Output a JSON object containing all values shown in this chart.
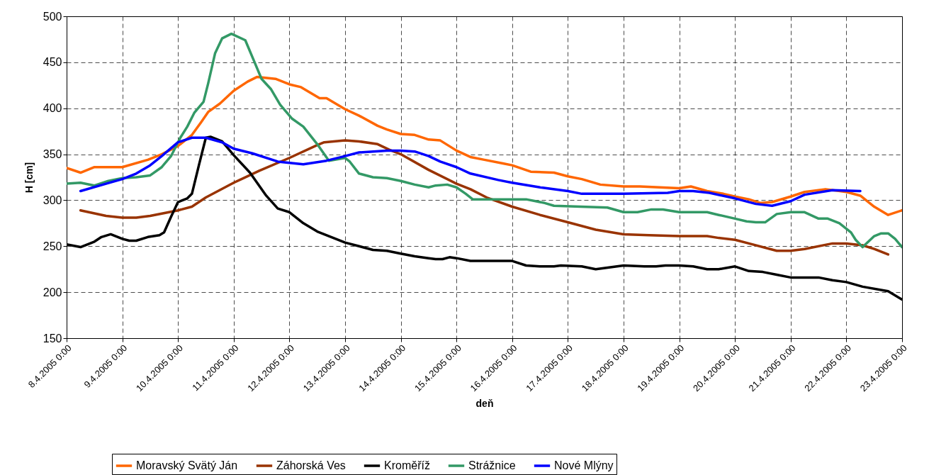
{
  "chart_data": {
    "type": "line",
    "xlabel": "deň",
    "ylabel": "H [cm]",
    "grid": true,
    "legend": "bottom",
    "line_style": "solid",
    "marker": "none",
    "xlim": [
      "2005-04-08T00:00",
      "2005-04-23T00:00"
    ],
    "xticks": [
      {
        "value": "2005-04-08T00:00",
        "label": "8.4.2005 0:00"
      },
      {
        "value": "2005-04-09T00:00",
        "label": "9.4.2005 0:00"
      },
      {
        "value": "2005-04-10T00:00",
        "label": "10.4.2005 0:00"
      },
      {
        "value": "2005-04-11T00:00",
        "label": "11.4.2005 0:00"
      },
      {
        "value": "2005-04-12T00:00",
        "label": "12.4.2005 0:00"
      },
      {
        "value": "2005-04-13T00:00",
        "label": "13.4.2005 0:00"
      },
      {
        "value": "2005-04-14T00:00",
        "label": "14.4.2005 0:00"
      },
      {
        "value": "2005-04-15T00:00",
        "label": "15.4.2005 0:00"
      },
      {
        "value": "2005-04-16T00:00",
        "label": "16.4.2005 0:00"
      },
      {
        "value": "2005-04-17T00:00",
        "label": "17.4.2005 0:00"
      },
      {
        "value": "2005-04-18T00:00",
        "label": "18.4.2005 0:00"
      },
      {
        "value": "2005-04-19T00:00",
        "label": "19.4.2005 0:00"
      },
      {
        "value": "2005-04-20T00:00",
        "label": "20.4.2005 0:00"
      },
      {
        "value": "2005-04-21T00:00",
        "label": "21.4.2005 0:00"
      },
      {
        "value": "2005-04-22T00:00",
        "label": "22.4.2005 0:00"
      },
      {
        "value": "2005-04-23T00:00",
        "label": "23.4.2005 0:00"
      }
    ],
    "ylim": [
      150,
      500
    ],
    "yticks": [
      150,
      200,
      250,
      300,
      350,
      400,
      450,
      500
    ],
    "series": [
      {
        "name": "Moravský Svätý Ján",
        "color": "#ff6600",
        "x": [
          "2005-04-08T00:00",
          "2005-04-08T06:00",
          "2005-04-08T12:00",
          "2005-04-09T00:00",
          "2005-04-09T11:00",
          "2005-04-09T17:00",
          "2005-04-10T00:00",
          "2005-04-10T06:00",
          "2005-04-10T10:00",
          "2005-04-10T13:00",
          "2005-04-10T18:00",
          "2005-04-11T00:00",
          "2005-04-11T06:00",
          "2005-04-11T10:00",
          "2005-04-11T18:00",
          "2005-04-12T00:00",
          "2005-04-12T05:00",
          "2005-04-12T13:00",
          "2005-04-12T16:00",
          "2005-04-13T00:00",
          "2005-04-13T06:00",
          "2005-04-13T14:00",
          "2005-04-13T18:00",
          "2005-04-14T00:00",
          "2005-04-14T06:00",
          "2005-04-14T12:00",
          "2005-04-14T17:00",
          "2005-04-15T00:00",
          "2005-04-15T06:00",
          "2005-04-15T12:00",
          "2005-04-15T20:00",
          "2005-04-16T00:00",
          "2005-04-16T08:00",
          "2005-04-16T18:00",
          "2005-04-17T00:00",
          "2005-04-17T06:00",
          "2005-04-17T14:00",
          "2005-04-18T00:00",
          "2005-04-18T07:00",
          "2005-04-19T00:00",
          "2005-04-19T05:00",
          "2005-04-19T12:00",
          "2005-04-19T19:00",
          "2005-04-20T00:00",
          "2005-04-20T06:00",
          "2005-04-20T11:00",
          "2005-04-20T16:00",
          "2005-04-21T00:00",
          "2005-04-21T06:00",
          "2005-04-21T15:00",
          "2005-04-22T00:00",
          "2005-04-22T06:00",
          "2005-04-22T12:00",
          "2005-04-22T18:00",
          "2005-04-23T00:00"
        ],
        "values": [
          335,
          330,
          336,
          336,
          344,
          350,
          359,
          371,
          385,
          396,
          405,
          419,
          429,
          434,
          432,
          426,
          423,
          411,
          411,
          399,
          392,
          381,
          377,
          372,
          371,
          366,
          365,
          354,
          347,
          344,
          340,
          338,
          331,
          330,
          326,
          323,
          317,
          315,
          315,
          313,
          315,
          310,
          307,
          304,
          301,
          297,
          298,
          304,
          309,
          312,
          309,
          305,
          293,
          284,
          289
        ]
      },
      {
        "name": "Záhorská Ves",
        "color": "#993300",
        "x": [
          "2005-04-08T06:00",
          "2005-04-08T17:00",
          "2005-04-09T00:00",
          "2005-04-09T06:00",
          "2005-04-09T12:00",
          "2005-04-10T00:00",
          "2005-04-10T06:00",
          "2005-04-10T12:00",
          "2005-04-11T00:00",
          "2005-04-11T11:00",
          "2005-04-12T00:00",
          "2005-04-12T12:00",
          "2005-04-12T15:00",
          "2005-04-13T00:00",
          "2005-04-13T06:00",
          "2005-04-13T14:00",
          "2005-04-13T19:00",
          "2005-04-14T00:00",
          "2005-04-14T12:00",
          "2005-04-15T00:00",
          "2005-04-15T06:00",
          "2005-04-15T13:00",
          "2005-04-16T00:00",
          "2005-04-16T12:00",
          "2005-04-17T00:00",
          "2005-04-17T12:00",
          "2005-04-18T00:00",
          "2005-04-18T11:00",
          "2005-04-19T00:00",
          "2005-04-19T12:00",
          "2005-04-19T17:00",
          "2005-04-20T00:00",
          "2005-04-20T06:00",
          "2005-04-20T18:00",
          "2005-04-21T00:00",
          "2005-04-21T06:00",
          "2005-04-21T18:00",
          "2005-04-22T00:00",
          "2005-04-22T07:00",
          "2005-04-22T12:00",
          "2005-04-22T18:00"
        ],
        "values": [
          289,
          283,
          281,
          281,
          283,
          289,
          293,
          303,
          319,
          332,
          346,
          360,
          363,
          365,
          364,
          361,
          355,
          350,
          333,
          318,
          312,
          303,
          293,
          284,
          276,
          268,
          263,
          262,
          261,
          261,
          259,
          257,
          253,
          245,
          245,
          247,
          253,
          253,
          251,
          247,
          241
        ]
      },
      {
        "name": "Kroměříž",
        "color": "#000000",
        "x": [
          "2005-04-08T00:00",
          "2005-04-08T06:00",
          "2005-04-08T12:00",
          "2005-04-08T15:00",
          "2005-04-08T19:00",
          "2005-04-09T00:00",
          "2005-04-09T03:00",
          "2005-04-09T06:00",
          "2005-04-09T11:00",
          "2005-04-09T16:00",
          "2005-04-09T18:00",
          "2005-04-09T21:00",
          "2005-04-10T00:00",
          "2005-04-10T04:00",
          "2005-04-10T06:00",
          "2005-04-10T09:00",
          "2005-04-10T10:00",
          "2005-04-10T12:00",
          "2005-04-10T14:00",
          "2005-04-10T19:00",
          "2005-04-11T00:00",
          "2005-04-11T07:00",
          "2005-04-11T14:00",
          "2005-04-11T19:00",
          "2005-04-12T00:00",
          "2005-04-12T06:00",
          "2005-04-12T12:00",
          "2005-04-13T00:00",
          "2005-04-13T06:00",
          "2005-04-13T12:00",
          "2005-04-13T18:00",
          "2005-04-14T00:00",
          "2005-04-14T06:00",
          "2005-04-14T12:00",
          "2005-04-14T15:00",
          "2005-04-14T18:00",
          "2005-04-14T21:00",
          "2005-04-15T00:00",
          "2005-04-15T06:00",
          "2005-04-16T00:00",
          "2005-04-16T06:00",
          "2005-04-16T12:00",
          "2005-04-16T18:00",
          "2005-04-16T21:00",
          "2005-04-17T06:00",
          "2005-04-17T12:00",
          "2005-04-18T00:00",
          "2005-04-18T09:00",
          "2005-04-18T14:00",
          "2005-04-18T18:00",
          "2005-04-19T00:00",
          "2005-04-19T06:00",
          "2005-04-19T12:00",
          "2005-04-19T17:00",
          "2005-04-20T00:00",
          "2005-04-20T06:00",
          "2005-04-20T12:00",
          "2005-04-20T18:00",
          "2005-04-21T00:00",
          "2005-04-21T12:00",
          "2005-04-21T18:00",
          "2005-04-22T00:00",
          "2005-04-22T07:00",
          "2005-04-22T18:00",
          "2005-04-23T00:00"
        ],
        "values": [
          252,
          249,
          255,
          260,
          263,
          258,
          256,
          256,
          260,
          262,
          265,
          282,
          298,
          302,
          307,
          338,
          348,
          368,
          369,
          364,
          349,
          330,
          305,
          291,
          287,
          275,
          266,
          254,
          250,
          246,
          245,
          242,
          239,
          237,
          236,
          236,
          238,
          237,
          234,
          234,
          229,
          228,
          228,
          229,
          228,
          225,
          229,
          228,
          228,
          229,
          229,
          228,
          225,
          225,
          228,
          223,
          222,
          219,
          216,
          216,
          213,
          211,
          206,
          201,
          192
        ]
      },
      {
        "name": "Strážnice",
        "color": "#339966",
        "x": [
          "2005-04-08T00:00",
          "2005-04-08T06:00",
          "2005-04-08T12:00",
          "2005-04-08T18:00",
          "2005-04-09T00:00",
          "2005-04-09T06:00",
          "2005-04-09T12:00",
          "2005-04-09T17:00",
          "2005-04-09T21:00",
          "2005-04-10T01:00",
          "2005-04-10T04:00",
          "2005-04-10T07:00",
          "2005-04-10T11:00",
          "2005-04-10T13:00",
          "2005-04-10T16:00",
          "2005-04-10T19:00",
          "2005-04-10T23:00",
          "2005-04-11T05:00",
          "2005-04-11T09:00",
          "2005-04-11T12:00",
          "2005-04-11T16:00",
          "2005-04-11T20:00",
          "2005-04-12T01:00",
          "2005-04-12T06:00",
          "2005-04-12T12:00",
          "2005-04-12T17:00",
          "2005-04-13T00:00",
          "2005-04-13T02:00",
          "2005-04-13T06:00",
          "2005-04-13T12:00",
          "2005-04-13T18:00",
          "2005-04-14T00:00",
          "2005-04-14T06:00",
          "2005-04-14T12:00",
          "2005-04-14T15:00",
          "2005-04-14T20:00",
          "2005-04-15T00:00",
          "2005-04-15T04:00",
          "2005-04-15T07:00",
          "2005-04-16T00:00",
          "2005-04-16T06:00",
          "2005-04-16T14:00",
          "2005-04-16T18:00",
          "2005-04-17T17:00",
          "2005-04-18T00:00",
          "2005-04-18T06:00",
          "2005-04-18T12:00",
          "2005-04-18T17:00",
          "2005-04-19T00:00",
          "2005-04-19T12:00",
          "2005-04-19T17:00",
          "2005-04-20T00:00",
          "2005-04-20T05:00",
          "2005-04-20T09:00",
          "2005-04-20T13:00",
          "2005-04-20T18:00",
          "2005-04-21T00:00",
          "2005-04-21T06:00",
          "2005-04-21T12:00",
          "2005-04-21T16:00",
          "2005-04-21T21:00",
          "2005-04-22T02:00",
          "2005-04-22T04:00",
          "2005-04-22T07:00",
          "2005-04-22T12:00",
          "2005-04-22T15:00",
          "2005-04-22T18:00",
          "2005-04-22T21:00",
          "2005-04-23T00:00"
        ],
        "values": [
          318,
          319,
          316,
          321,
          324,
          325,
          327,
          336,
          348,
          368,
          380,
          395,
          407,
          427,
          460,
          476,
          481,
          474,
          450,
          432,
          421,
          404,
          389,
          380,
          361,
          343,
          346,
          342,
          329,
          325,
          324,
          321,
          317,
          314,
          316,
          317,
          314,
          307,
          301,
          301,
          301,
          297,
          294,
          292,
          287,
          287,
          290,
          290,
          287,
          287,
          284,
          280,
          277,
          276,
          276,
          285,
          287,
          287,
          280,
          280,
          275,
          265,
          257,
          249,
          261,
          264,
          264,
          258,
          249
        ]
      },
      {
        "name": "Nové Mlýny",
        "color": "#0000ff",
        "x": [
          "2005-04-08T06:00",
          "2005-04-08T17:00",
          "2005-04-09T00:00",
          "2005-04-09T06:00",
          "2005-04-09T12:00",
          "2005-04-09T17:00",
          "2005-04-10T00:00",
          "2005-04-10T06:00",
          "2005-04-10T12:00",
          "2005-04-10T19:00",
          "2005-04-11T00:00",
          "2005-04-11T08:00",
          "2005-04-11T19:00",
          "2005-04-12T06:00",
          "2005-04-12T16:00",
          "2005-04-13T00:00",
          "2005-04-13T06:00",
          "2005-04-13T18:00",
          "2005-04-14T00:00",
          "2005-04-14T06:00",
          "2005-04-14T12:00",
          "2005-04-14T17:00",
          "2005-04-15T00:00",
          "2005-04-15T06:00",
          "2005-04-15T18:00",
          "2005-04-16T00:00",
          "2005-04-16T12:00",
          "2005-04-17T00:00",
          "2005-04-17T06:00",
          "2005-04-18T00:00",
          "2005-04-18T19:00",
          "2005-04-19T00:00",
          "2005-04-19T06:00",
          "2005-04-19T13:00",
          "2005-04-20T00:00",
          "2005-04-20T09:00",
          "2005-04-20T16:00",
          "2005-04-21T00:00",
          "2005-04-21T06:00",
          "2005-04-21T18:00",
          "2005-04-22T06:00"
        ],
        "values": [
          310,
          318,
          323,
          329,
          338,
          348,
          363,
          368,
          368,
          363,
          356,
          351,
          342,
          339,
          343,
          348,
          352,
          354,
          354,
          353,
          348,
          342,
          336,
          329,
          322,
          319,
          314,
          310,
          307,
          307,
          308,
          310,
          310,
          308,
          302,
          296,
          294,
          299,
          306,
          311,
          310
        ]
      }
    ]
  }
}
